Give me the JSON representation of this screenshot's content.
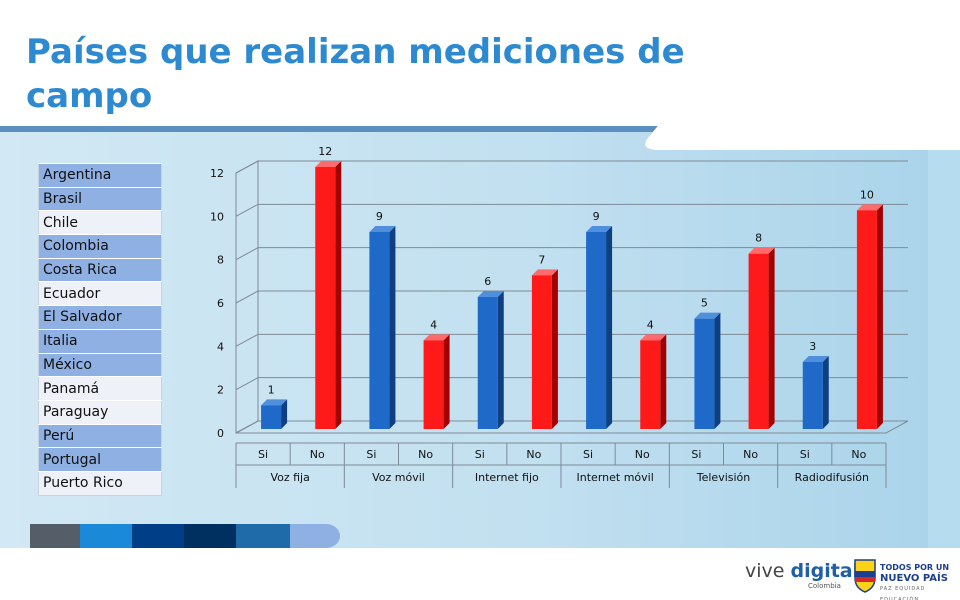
{
  "slide": {
    "title": "Países que realizan mediciones de campo"
  },
  "countries": [
    "Argentina",
    "Brasil",
    "Chile",
    "Colombia",
    "Costa Rica",
    "Ecuador",
    "El Salvador",
    "Italia",
    "México",
    "Panamá",
    "Paraguay",
    "Perú",
    "Portugal",
    "Puerto Rico"
  ],
  "colors": {
    "title": "#2e8ad0",
    "si_bar": "#1f6ac8",
    "no_bar": "#ff1a1a",
    "table_alt": "#8fb0e3",
    "table_plain": "#eef1f7"
  },
  "chart_data": {
    "type": "bar",
    "ylim": [
      0,
      12
    ],
    "yticks": [
      "0",
      "2",
      "4",
      "6",
      "8",
      "10",
      "12"
    ],
    "grid": true,
    "legend": "none",
    "groups": [
      "Voz fija",
      "Voz móvil",
      "Internet fijo",
      "Internet móvil",
      "Televisión",
      "Radiodifusión"
    ],
    "categories": [
      "Si",
      "No",
      "Si",
      "No",
      "Si",
      "No",
      "Si",
      "No",
      "Si",
      "No",
      "Si",
      "No"
    ],
    "values": [
      1,
      12,
      9,
      4,
      6,
      7,
      9,
      4,
      5,
      8,
      3,
      10
    ]
  },
  "footer": {
    "vd_prefix": "vive ",
    "vd_accent": "digital",
    "vd_sub": "Colombia",
    "tp_line1": "TODOS POR UN",
    "tp_line2": "NUEVO PAÍS",
    "tp_line3": "PAZ EQUIDAD EDUCACIÓN"
  }
}
